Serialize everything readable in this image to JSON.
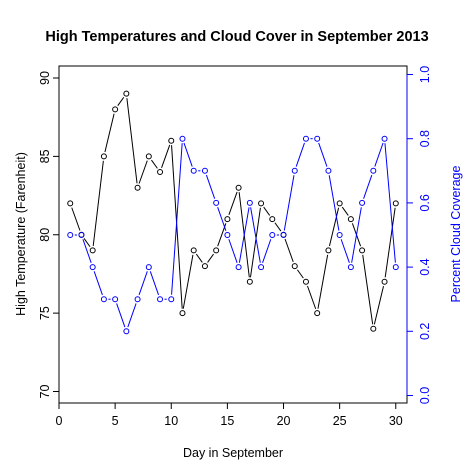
{
  "chart_data": {
    "type": "line",
    "title": "High Temperatures and Cloud Cover in September 2013",
    "xlabel": "Day in September",
    "ylabel_left": "High Temperature (Farenheit)",
    "ylabel_right": "Percent Cloud Coverage",
    "x": [
      1,
      2,
      3,
      4,
      5,
      6,
      7,
      8,
      9,
      10,
      11,
      12,
      13,
      14,
      15,
      16,
      17,
      18,
      19,
      20,
      21,
      22,
      23,
      24,
      25,
      26,
      27,
      28,
      29,
      30
    ],
    "xlim": [
      0,
      31
    ],
    "xticks": [
      "0",
      "5",
      "10",
      "15",
      "20",
      "25",
      "30"
    ],
    "ylim_left": [
      70,
      90
    ],
    "yticks_left": [
      "70",
      "75",
      "80",
      "85",
      "90"
    ],
    "ylim_right": [
      0,
      1
    ],
    "yticks_right": [
      "0.0",
      "0.2",
      "0.4",
      "0.6",
      "0.8",
      "1.0"
    ],
    "series": [
      {
        "axis": "left",
        "color": "#000000",
        "values": [
          82,
          80,
          79,
          85,
          88,
          89,
          83,
          85,
          84,
          86,
          75,
          79,
          78,
          79,
          81,
          83,
          77,
          82,
          81,
          80,
          78,
          77,
          75,
          79,
          82,
          81,
          79,
          74,
          77,
          82
        ]
      },
      {
        "axis": "right",
        "color": "#0000ff",
        "values": [
          0.5,
          0.5,
          0.4,
          0.3,
          0.3,
          0.2,
          0.3,
          0.4,
          0.3,
          0.3,
          0.8,
          0.7,
          0.7,
          0.6,
          0.5,
          0.4,
          0.6,
          0.4,
          0.5,
          0.5,
          0.7,
          0.8,
          0.8,
          0.7,
          0.5,
          0.4,
          0.6,
          0.7,
          0.8,
          0.4
        ]
      }
    ],
    "grid": false,
    "legend": "none",
    "marker": "open-circle"
  }
}
